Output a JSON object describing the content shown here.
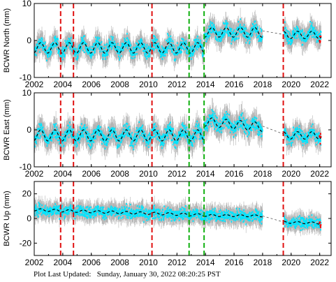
{
  "footer": "Plot Last Updated:   Sunday, January 30, 2022 08:20:25 PST",
  "colors": {
    "error_bar": "#b4b4b4",
    "daily_point": "#00e5ff",
    "model_line": "#000000",
    "equipment_break": "#e01010",
    "earthquake_break": "#10b010",
    "recent_point": "#ff0000"
  },
  "chart_data": [
    {
      "type": "scatter",
      "ylabel": "BCWR North (mm)",
      "xlim": [
        2002,
        2022.8
      ],
      "ylim": [
        -10,
        10
      ],
      "xticks": [
        2002,
        2004,
        2006,
        2008,
        2010,
        2012,
        2014,
        2016,
        2018,
        2020,
        2022
      ],
      "yticks": [
        -10,
        0,
        10
      ],
      "x_tick_labels_shown": true,
      "segments": [
        {
          "start": 2002.0,
          "end": 2013.9,
          "offset": -2.0,
          "trend": 0.0,
          "amplitude": 1.4,
          "scatter": 2.2
        },
        {
          "start": 2013.9,
          "end": 2018.0,
          "offset": 2.2,
          "trend": 0.0,
          "amplitude": 1.3,
          "scatter": 2.2
        },
        {
          "start": 2019.5,
          "end": 2022.1,
          "offset": 1.5,
          "trend": 0.0,
          "amplitude": 1.0,
          "scatter": 2.2
        }
      ],
      "gap_line": [
        [
          2018.0,
          2.6
        ],
        [
          2019.5,
          1.6
        ]
      ]
    },
    {
      "type": "scatter",
      "ylabel": "BCWR East (mm)",
      "xlim": [
        2002,
        2022.8
      ],
      "ylim": [
        -10,
        10
      ],
      "xticks": [
        2002,
        2004,
        2006,
        2008,
        2010,
        2012,
        2014,
        2016,
        2018,
        2020,
        2022
      ],
      "yticks": [
        -10,
        0,
        10
      ],
      "x_tick_labels_shown": true,
      "segments": [
        {
          "start": 2002.0,
          "end": 2013.9,
          "offset": -1.5,
          "trend": 0.0,
          "amplitude": 1.5,
          "scatter": 2.4
        },
        {
          "start": 2013.9,
          "end": 2018.0,
          "offset": 2.2,
          "trend": -0.35,
          "amplitude": 1.2,
          "scatter": 2.4
        },
        {
          "start": 2019.5,
          "end": 2022.1,
          "offset": -1.5,
          "trend": 0.0,
          "amplitude": 1.0,
          "scatter": 2.2
        }
      ],
      "gap_line": [
        [
          2018.0,
          1.0
        ],
        [
          2019.5,
          -1.2
        ]
      ]
    },
    {
      "type": "scatter",
      "ylabel": "BCWR Up (mm)",
      "xlim": [
        2002,
        2022.8
      ],
      "ylim": [
        -30,
        30
      ],
      "xticks": [
        2002,
        2004,
        2006,
        2008,
        2010,
        2012,
        2014,
        2016,
        2018,
        2020,
        2022
      ],
      "yticks": [
        -20,
        0,
        20
      ],
      "x_tick_labels_shown": true,
      "segments": [
        {
          "start": 2002.0,
          "end": 2013.9,
          "offset": 7.0,
          "trend": -0.35,
          "amplitude": 1.0,
          "scatter": 5.5
        },
        {
          "start": 2013.9,
          "end": 2018.0,
          "offset": 2.5,
          "trend": -0.1,
          "amplitude": 0.8,
          "scatter": 5.5
        },
        {
          "start": 2019.5,
          "end": 2022.1,
          "offset": -3.0,
          "trend": -0.3,
          "amplitude": 0.8,
          "scatter": 5.0
        }
      ],
      "gap_line": [
        [
          2018.0,
          2.0
        ],
        [
          2019.5,
          -3.0
        ]
      ]
    }
  ],
  "breaks": [
    {
      "x": 2003.85,
      "kind": "equipment"
    },
    {
      "x": 2004.75,
      "kind": "equipment"
    },
    {
      "x": 2010.25,
      "kind": "equipment"
    },
    {
      "x": 2012.85,
      "kind": "earthquake"
    },
    {
      "x": 2013.9,
      "kind": "earthquake"
    },
    {
      "x": 2019.45,
      "kind": "equipment"
    }
  ]
}
